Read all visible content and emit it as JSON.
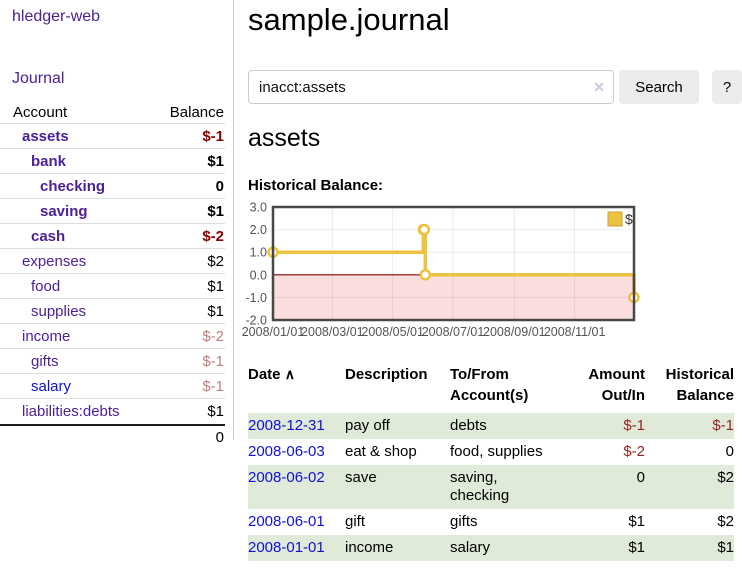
{
  "brand": "hledger-web",
  "nav": {
    "journal": "Journal"
  },
  "sidebar": {
    "header": {
      "account": "Account",
      "balance": "Balance"
    },
    "accounts": [
      {
        "name": "assets",
        "balance": "$-1"
      },
      {
        "name": "bank",
        "balance": "$1"
      },
      {
        "name": "checking",
        "balance": "0"
      },
      {
        "name": "saving",
        "balance": "$1"
      },
      {
        "name": "cash",
        "balance": "$-2"
      },
      {
        "name": "expenses",
        "balance": "$2"
      },
      {
        "name": "food",
        "balance": "$1"
      },
      {
        "name": "supplies",
        "balance": "$1"
      },
      {
        "name": "income",
        "balance": "$-2"
      },
      {
        "name": "gifts",
        "balance": "$-1"
      },
      {
        "name": "salary",
        "balance": "$-1"
      },
      {
        "name": "liabilities:debts",
        "balance": "$1"
      }
    ],
    "total": "0"
  },
  "header": {
    "title": "sample.journal"
  },
  "search": {
    "value": "inacct:assets",
    "clear_icon": "✕",
    "button": "Search",
    "help_button": "?"
  },
  "account_page": {
    "heading": "assets"
  },
  "chart_data": {
    "type": "line",
    "title": "Historical Balance:",
    "step": true,
    "xlabel": "",
    "ylabel": "",
    "ylim": [
      -2,
      3
    ],
    "xlim_days": [
      0,
      365
    ],
    "yticks": [
      3.0,
      2.0,
      1.0,
      0.0,
      -1.0,
      -2.0
    ],
    "xticks": [
      {
        "day": 0,
        "label": "2008/01/01"
      },
      {
        "day": 60,
        "label": "2008/03/01"
      },
      {
        "day": 121,
        "label": "2008/05/01"
      },
      {
        "day": 182,
        "label": "2008/07/01"
      },
      {
        "day": 244,
        "label": "2008/09/01"
      },
      {
        "day": 305,
        "label": "2008/11/01"
      }
    ],
    "series": [
      {
        "name": "$",
        "color": "#edc240",
        "points": [
          {
            "date": "2008-01-01",
            "day": 0,
            "value": 1
          },
          {
            "date": "2008-06-01",
            "day": 152,
            "value": 2
          },
          {
            "date": "2008-06-02",
            "day": 153,
            "value": 2
          },
          {
            "date": "2008-06-03",
            "day": 154,
            "value": 0
          },
          {
            "date": "2008-12-31",
            "day": 365,
            "value": -1
          }
        ]
      }
    ],
    "negative_region_color": "#fadddd",
    "zero_line_color": "#800000",
    "legend_position": "top-right",
    "grid": true
  },
  "register": {
    "columns": {
      "date": "Date",
      "description": "Description",
      "accounts": "To/From Account(s)",
      "amount": "Amount Out/In",
      "balance": "Historical Balance"
    },
    "sort_indicator": "∧",
    "rows": [
      {
        "date": "2008-12-31",
        "description": "pay off",
        "accounts": "debts",
        "amount": "$-1",
        "balance": "$-1"
      },
      {
        "date": "2008-06-03",
        "description": "eat & shop",
        "accounts": "food, supplies",
        "amount": "$-2",
        "balance": "0"
      },
      {
        "date": "2008-06-02",
        "description": "save",
        "accounts": "saving, checking",
        "amount": "0",
        "balance": "$2"
      },
      {
        "date": "2008-06-01",
        "description": "gift",
        "accounts": "gifts",
        "amount": "$1",
        "balance": "$2"
      },
      {
        "date": "2008-01-01",
        "description": "income",
        "accounts": "salary",
        "amount": "$1",
        "balance": "$1"
      }
    ]
  },
  "colors": {
    "link_purple": "#4e2096",
    "link_blue": "#1010d8",
    "negative_strong": "#8b0000",
    "negative_muted": "#bc7e7e",
    "negative_table": "#952525",
    "row_green": "#dfead9",
    "series_gold": "#edc240",
    "chart_border": "#474747"
  }
}
